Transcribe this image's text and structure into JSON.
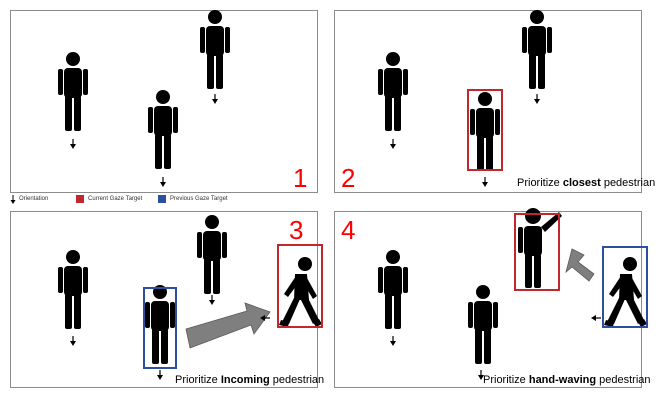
{
  "panels": [
    {
      "number": "1"
    },
    {
      "number": "2",
      "caption_pre": "Prioritize ",
      "caption_bold": "closest",
      "caption_post": " pedestrian"
    },
    {
      "number": "3",
      "caption_pre": "Prioritize ",
      "caption_bold": "Incoming",
      "caption_post": " pedestrian"
    },
    {
      "number": "4",
      "caption_pre": "Prioritize ",
      "caption_bold": "hand-waving",
      "caption_post": " pedestrian"
    }
  ],
  "legend": {
    "orientation": "Orientation",
    "current": "Current Gaze Target",
    "previous": "Previous Gaze Target"
  },
  "colors": {
    "current_gaze": "#c0282d",
    "previous_gaze": "#2e4f9c",
    "number": "#ff0000",
    "arrow": "#7f7f7f"
  }
}
